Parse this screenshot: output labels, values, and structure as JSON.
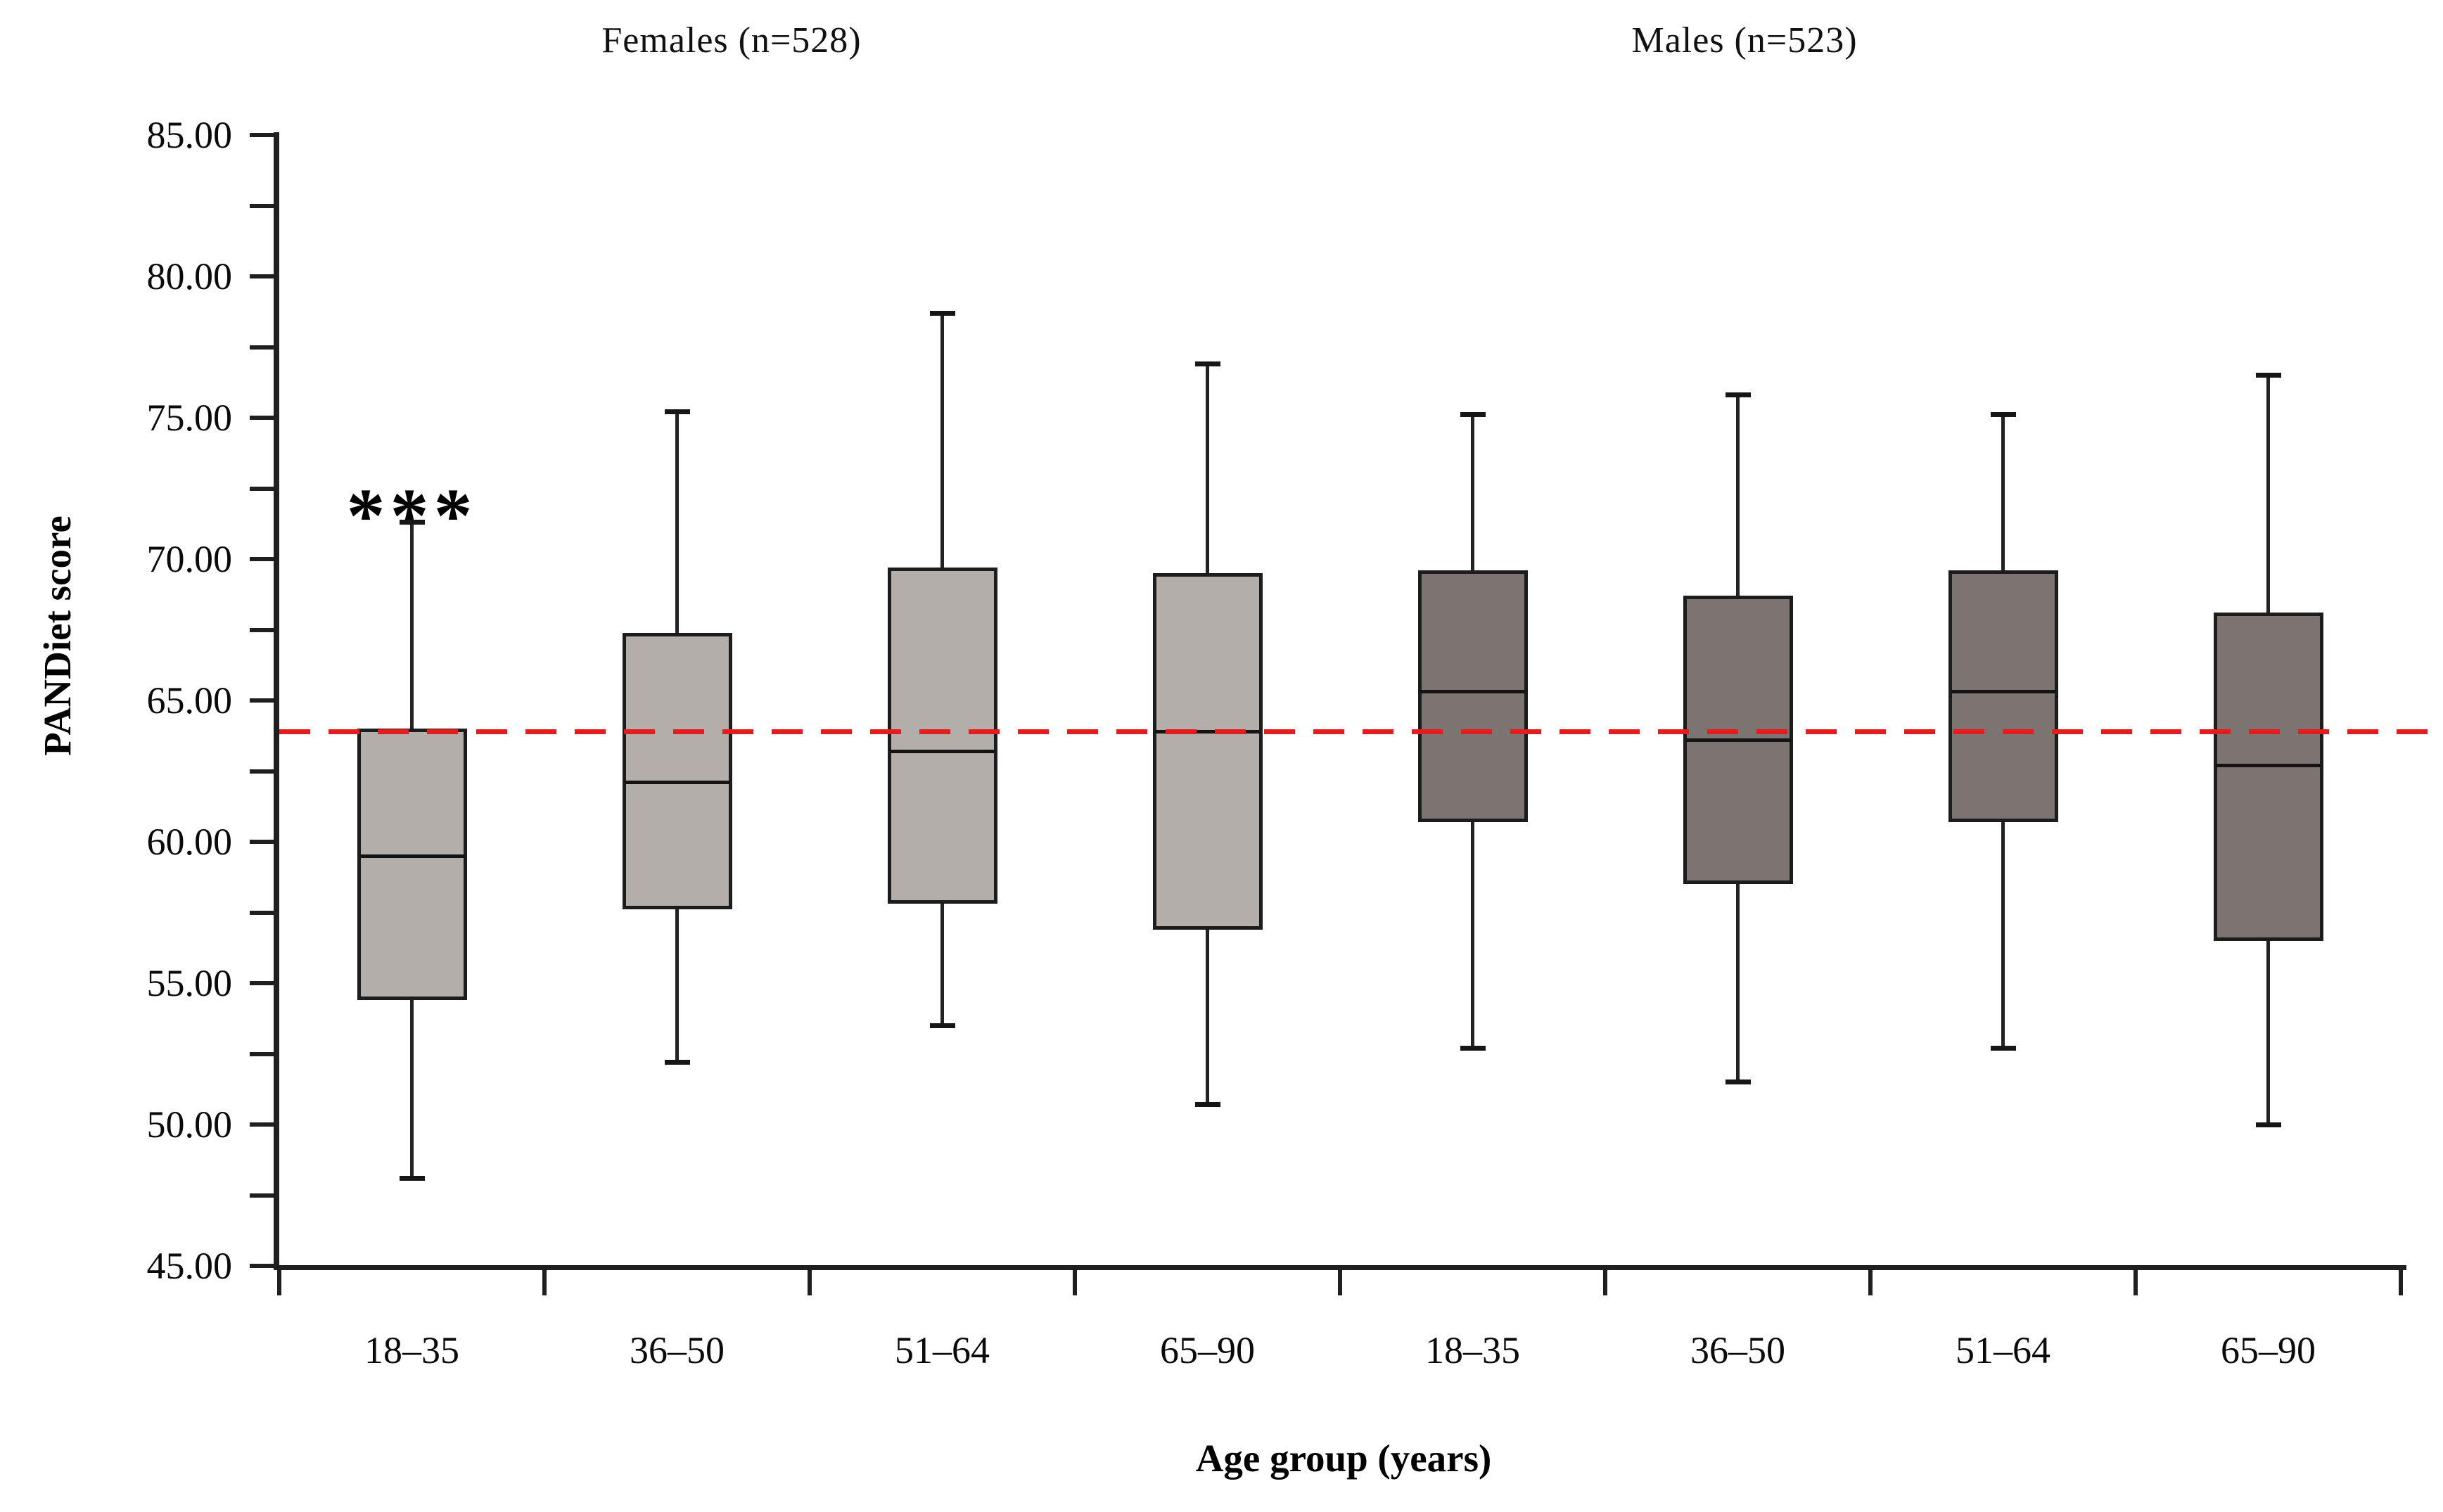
{
  "chart_data": {
    "type": "boxplot",
    "ylabel": "PANDiet score",
    "xlabel": "Age group (years)",
    "ylim": [
      45,
      85
    ],
    "ytick_step": 5,
    "ytick_minor_step": 2.5,
    "yticks": [
      {
        "value": 85,
        "label": "85.00"
      },
      {
        "value": 80,
        "label": "80.00"
      },
      {
        "value": 75,
        "label": "75.00"
      },
      {
        "value": 70,
        "label": "70.00"
      },
      {
        "value": 65,
        "label": "65.00"
      },
      {
        "value": 60,
        "label": "60.00"
      },
      {
        "value": 55,
        "label": "55.00"
      },
      {
        "value": 50,
        "label": "50.00"
      },
      {
        "value": 45,
        "label": "45.00"
      }
    ],
    "categories": [
      "18–35",
      "36–50",
      "51–64",
      "65–90",
      "18–35",
      "36–50",
      "51–64",
      "65–90"
    ],
    "grid": false,
    "groups": [
      {
        "name": "Females (n=528)",
        "fill_color": "#b3aeaa",
        "boxes": [
          {
            "age_group": "18–35",
            "whisker_low": 48.1,
            "q1": 54.4,
            "median": 59.5,
            "q3": 64.0,
            "whisker_high": 71.3
          },
          {
            "age_group": "36–50",
            "whisker_low": 52.2,
            "q1": 57.6,
            "median": 62.1,
            "q3": 67.4,
            "whisker_high": 75.2
          },
          {
            "age_group": "51–64",
            "whisker_low": 53.5,
            "q1": 57.8,
            "median": 63.2,
            "q3": 69.7,
            "whisker_high": 78.7
          },
          {
            "age_group": "65–90",
            "whisker_low": 50.7,
            "q1": 56.9,
            "median": 63.9,
            "q3": 69.5,
            "whisker_high": 76.9
          }
        ]
      },
      {
        "name": "Males (n=523)",
        "fill_color": "#7b7470",
        "boxes": [
          {
            "age_group": "18–35",
            "whisker_low": 52.7,
            "q1": 60.7,
            "median": 65.3,
            "q3": 69.6,
            "whisker_high": 75.1
          },
          {
            "age_group": "36–50",
            "whisker_low": 51.5,
            "q1": 58.5,
            "median": 63.6,
            "q3": 68.7,
            "whisker_high": 75.8
          },
          {
            "age_group": "51–64",
            "whisker_low": 52.7,
            "q1": 60.7,
            "median": 65.3,
            "q3": 69.6,
            "whisker_high": 75.1
          },
          {
            "age_group": "65–90",
            "whisker_low": 50.0,
            "q1": 56.5,
            "median": 62.7,
            "q3": 68.1,
            "whisker_high": 76.5
          }
        ]
      }
    ],
    "reference_line": {
      "value": 63.9,
      "color": "#e41b1f",
      "style": "dashed"
    },
    "annotations": [
      {
        "text": "***",
        "group_index": 0,
        "category_index": 0,
        "y": 72.6
      }
    ],
    "line_color": "#1c1c1c"
  }
}
